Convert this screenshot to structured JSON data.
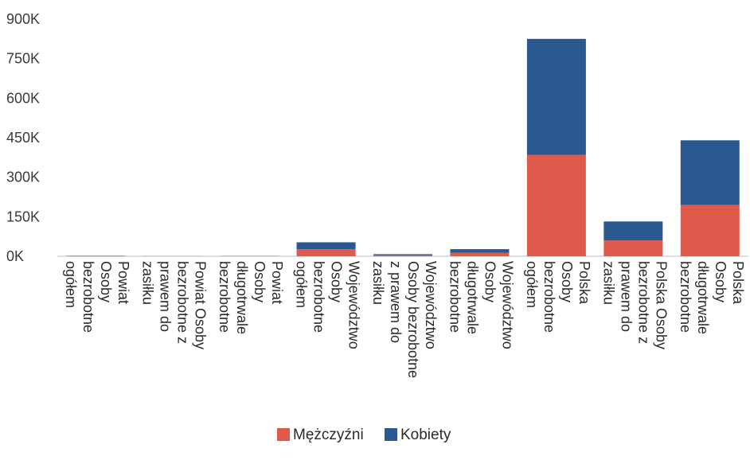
{
  "chart_data": {
    "type": "bar",
    "stacked": true,
    "orientation": "vertical",
    "ylim": [
      0,
      900000
    ],
    "y_ticks": [
      {
        "value": 0,
        "label": "0K"
      },
      {
        "value": 150000,
        "label": "150K"
      },
      {
        "value": 300000,
        "label": "300K"
      },
      {
        "value": 450000,
        "label": "450K"
      },
      {
        "value": 600000,
        "label": "600K"
      },
      {
        "value": 750000,
        "label": "750K"
      },
      {
        "value": 900000,
        "label": "900K"
      }
    ],
    "grid": false,
    "legend_position": "bottom-center",
    "categories": [
      [
        "Powiat",
        "Osoby",
        "bezrobotne",
        "ogółem"
      ],
      [
        "Powiat Osoby",
        "bezrobotne z",
        "prawem do",
        "zasiłku"
      ],
      [
        "Powiat",
        "Osoby",
        "długotrwale",
        "bezrobotne"
      ],
      [
        "Województwo",
        "Osoby",
        "bezrobotne",
        "ogółem"
      ],
      [
        "Województwo",
        "Osoby bezrobotne",
        "z prawem do",
        "zasiłku"
      ],
      [
        "Województwo",
        "Osoby",
        "długotrwale",
        "bezrobotne"
      ],
      [
        "Polska",
        "Osoby",
        "bezrobotne",
        "ogółem"
      ],
      [
        "Polska Osoby",
        "bezrobotne z",
        "prawem do",
        "zasiłku"
      ],
      [
        "Polska",
        "Osoby",
        "długotrwale",
        "bezrobotne"
      ]
    ],
    "series": [
      {
        "name": "Mężczyźni",
        "color": "#e05a4c",
        "values": [
          1000,
          300,
          500,
          27000,
          4000,
          13000,
          385000,
          60000,
          195000
        ]
      },
      {
        "name": "Kobiety",
        "color": "#2c5890",
        "values": [
          1000,
          300,
          600,
          26000,
          4000,
          14000,
          440000,
          72000,
          245000
        ]
      }
    ]
  }
}
